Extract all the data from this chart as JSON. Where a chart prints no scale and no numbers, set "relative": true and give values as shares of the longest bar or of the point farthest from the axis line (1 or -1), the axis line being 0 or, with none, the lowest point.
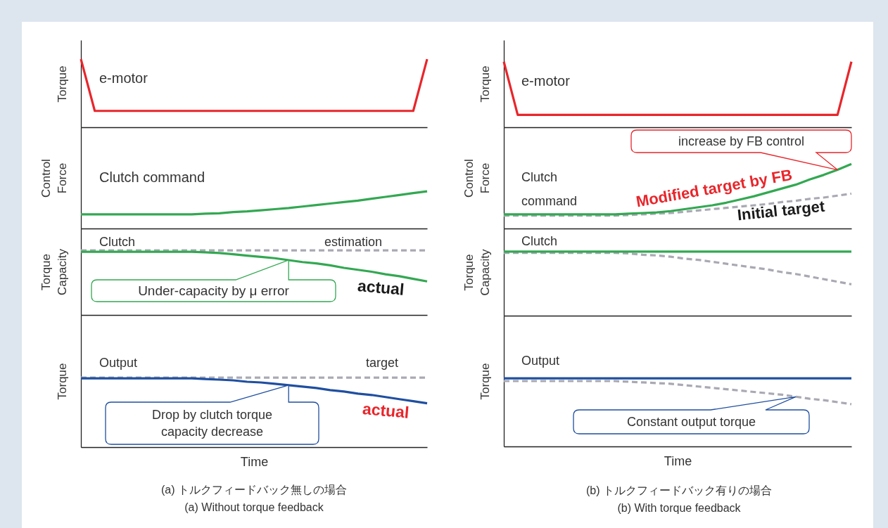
{
  "chart_data": [
    {
      "type": "line",
      "relative": true,
      "tick_labels": false,
      "ylabel": "Torque",
      "categories": [
        null,
        null,
        null,
        null,
        null,
        null,
        null,
        null,
        null,
        null,
        null,
        null,
        null,
        null,
        null,
        null,
        null,
        null,
        null,
        null,
        null,
        null,
        null,
        null,
        null,
        null
      ],
      "series": [
        {
          "name": "e-motor",
          "color": "#e8262b",
          "values": [
            1,
            0.24,
            0.24,
            0.24,
            0.24,
            0.24,
            0.24,
            0.24,
            0.24,
            0.24,
            0.24,
            0.24,
            0.24,
            0.24,
            0.24,
            0.24,
            0.24,
            0.24,
            0.24,
            0.24,
            0.24,
            0.24,
            0.24,
            0.24,
            0.24,
            1
          ]
        }
      ]
    },
    {
      "type": "line",
      "relative": true,
      "tick_labels": false,
      "ylabel": "Control\nForce",
      "categories": [
        null,
        null,
        null,
        null,
        null,
        null,
        null,
        null,
        null,
        null,
        null,
        null,
        null,
        null,
        null,
        null,
        null,
        null,
        null,
        null,
        null,
        null,
        null,
        null,
        null,
        null
      ],
      "series": [
        {
          "name": "Clutch command",
          "color": "#33a852",
          "values": [
            0.38,
            0.38,
            0.38,
            0.38,
            0.38,
            0.38,
            0.38,
            0.38,
            0.38,
            0.4,
            0.41,
            0.44,
            0.46,
            0.49,
            0.52,
            0.55,
            0.59,
            0.63,
            0.67,
            0.71,
            0.75,
            0.8,
            0.85,
            0.9,
            0.95,
            1
          ]
        }
      ]
    },
    {
      "type": "line",
      "relative": true,
      "tick_labels": false,
      "ylabel": "Torque\nCapacity",
      "annotations": [
        "Clutch",
        "Under-capacity by μ error"
      ],
      "categories": [
        null,
        null,
        null,
        null,
        null,
        null,
        null,
        null,
        null,
        null,
        null,
        null,
        null,
        null,
        null,
        null,
        null,
        null,
        null,
        null,
        null,
        null,
        null,
        null,
        null,
        null
      ],
      "series": [
        {
          "name": "estimation",
          "color": "#a9a9b3",
          "line_style": "dashed",
          "values": [
            1,
            1,
            1,
            1,
            1,
            1,
            1,
            1,
            1,
            1,
            1,
            1,
            1,
            1,
            1,
            1,
            1,
            1,
            1,
            1,
            1,
            1,
            1,
            1,
            1,
            1
          ]
        },
        {
          "name": "actual",
          "color": "#33a852",
          "values": [
            0.98,
            0.98,
            0.98,
            0.98,
            0.98,
            0.98,
            0.98,
            0.98,
            0.98,
            0.97,
            0.96,
            0.94,
            0.92,
            0.9,
            0.88,
            0.85,
            0.82,
            0.8,
            0.77,
            0.73,
            0.7,
            0.67,
            0.63,
            0.6,
            0.56,
            0.52
          ]
        }
      ]
    },
    {
      "type": "line",
      "relative": true,
      "tick_labels": false,
      "ylabel": "Torque",
      "xlabel": "Time",
      "annotations": [
        "Output",
        "Drop by clutch torque\ncapacity decrease",
        "(a) トルクフィードバック無しの場合",
        "(a) Without torque feedback"
      ],
      "categories": [
        null,
        null,
        null,
        null,
        null,
        null,
        null,
        null,
        null,
        null,
        null,
        null,
        null,
        null,
        null,
        null,
        null,
        null,
        null,
        null,
        null,
        null,
        null,
        null,
        null,
        null
      ],
      "series": [
        {
          "name": "target",
          "color": "#a9a9b3",
          "line_style": "dashed",
          "values": [
            1,
            1,
            1,
            1,
            1,
            1,
            1,
            1,
            1,
            1,
            1,
            1,
            1,
            1,
            1,
            1,
            1,
            1,
            1,
            1,
            1,
            1,
            1,
            1,
            1,
            1
          ]
        },
        {
          "name": "actual",
          "color": "#1f4fa0",
          "values": [
            0.99,
            0.99,
            0.99,
            0.99,
            0.99,
            0.99,
            0.99,
            0.99,
            0.99,
            0.98,
            0.97,
            0.96,
            0.94,
            0.93,
            0.91,
            0.89,
            0.87,
            0.85,
            0.82,
            0.8,
            0.77,
            0.75,
            0.72,
            0.69,
            0.66,
            0.63
          ]
        }
      ]
    },
    {
      "type": "line",
      "relative": true,
      "tick_labels": false,
      "ylabel": "Torque",
      "categories": [
        null,
        null,
        null,
        null,
        null,
        null,
        null,
        null,
        null,
        null,
        null,
        null,
        null,
        null,
        null,
        null,
        null,
        null,
        null,
        null,
        null,
        null,
        null,
        null,
        null,
        null
      ],
      "series": [
        {
          "name": "e-motor",
          "color": "#e8262b",
          "values": [
            1,
            0.19,
            0.19,
            0.19,
            0.19,
            0.19,
            0.19,
            0.19,
            0.19,
            0.19,
            0.19,
            0.19,
            0.19,
            0.19,
            0.19,
            0.19,
            0.19,
            0.19,
            0.19,
            0.19,
            0.19,
            0.19,
            0.19,
            0.19,
            0.19,
            1
          ]
        }
      ]
    },
    {
      "type": "line",
      "relative": true,
      "tick_labels": false,
      "ylabel": "Control\nForce",
      "annotations": [
        "increase by FB control",
        "Clutch\ncommand"
      ],
      "categories": [
        null,
        null,
        null,
        null,
        null,
        null,
        null,
        null,
        null,
        null,
        null,
        null,
        null,
        null,
        null,
        null,
        null,
        null,
        null,
        null,
        null,
        null,
        null,
        null,
        null,
        null
      ],
      "series": [
        {
          "name": "Initial target",
          "color": "#a9a9b3",
          "line_style": "dashed",
          "values": [
            0.2,
            0.2,
            0.2,
            0.2,
            0.2,
            0.2,
            0.2,
            0.2,
            0.2,
            0.21,
            0.22,
            0.23,
            0.24,
            0.26,
            0.28,
            0.3,
            0.32,
            0.34,
            0.36,
            0.38,
            0.41,
            0.43,
            0.46,
            0.48,
            0.51,
            0.54
          ]
        },
        {
          "name": "Modified target by FB",
          "color": "#33a852",
          "values": [
            0.22,
            0.22,
            0.22,
            0.22,
            0.22,
            0.22,
            0.22,
            0.22,
            0.22,
            0.23,
            0.24,
            0.25,
            0.27,
            0.3,
            0.33,
            0.36,
            0.4,
            0.45,
            0.5,
            0.56,
            0.62,
            0.68,
            0.76,
            0.83,
            0.91,
            1
          ]
        }
      ]
    },
    {
      "type": "line",
      "relative": true,
      "tick_labels": false,
      "ylabel": "Torque\nCapacity",
      "annotations": [
        "Clutch"
      ],
      "categories": [
        null,
        null,
        null,
        null,
        null,
        null,
        null,
        null,
        null,
        null,
        null,
        null,
        null,
        null,
        null,
        null,
        null,
        null,
        null,
        null,
        null,
        null,
        null,
        null,
        null,
        null
      ],
      "series": [
        {
          "color": "#a9a9b3",
          "line_style": "dashed",
          "values": [
            0.98,
            0.98,
            0.98,
            0.98,
            0.98,
            0.98,
            0.98,
            0.98,
            0.98,
            0.97,
            0.95,
            0.94,
            0.92,
            0.89,
            0.87,
            0.84,
            0.81,
            0.78,
            0.75,
            0.72,
            0.68,
            0.65,
            0.61,
            0.57,
            0.53,
            0.49
          ]
        },
        {
          "color": "#33a852",
          "values": [
            1,
            1,
            1,
            1,
            1,
            1,
            1,
            1,
            1,
            1,
            1,
            1,
            1,
            1,
            1,
            1,
            1,
            1,
            1,
            1,
            1,
            1,
            1,
            1,
            1,
            1
          ]
        }
      ]
    },
    {
      "type": "line",
      "relative": true,
      "tick_labels": false,
      "ylabel": "Torque",
      "xlabel": "Time",
      "annotations": [
        "Output",
        "Constant output torque",
        "(b) トルクフィードバック有りの場合",
        "(b) With torque feedback"
      ],
      "categories": [
        null,
        null,
        null,
        null,
        null,
        null,
        null,
        null,
        null,
        null,
        null,
        null,
        null,
        null,
        null,
        null,
        null,
        null,
        null,
        null,
        null,
        null,
        null,
        null,
        null,
        null
      ],
      "series": [
        {
          "color": "#a9a9b3",
          "line_style": "dashed",
          "values": [
            0.96,
            0.96,
            0.96,
            0.96,
            0.96,
            0.96,
            0.96,
            0.96,
            0.96,
            0.95,
            0.94,
            0.93,
            0.92,
            0.9,
            0.88,
            0.86,
            0.84,
            0.82,
            0.8,
            0.78,
            0.76,
            0.73,
            0.7,
            0.68,
            0.65,
            0.62
          ]
        },
        {
          "color": "#1f4fa0",
          "values": [
            1,
            1,
            1,
            1,
            1,
            1,
            1,
            1,
            1,
            1,
            1,
            1,
            1,
            1,
            1,
            1,
            1,
            1,
            1,
            1,
            1,
            1,
            1,
            1,
            1,
            1
          ]
        }
      ]
    }
  ]
}
